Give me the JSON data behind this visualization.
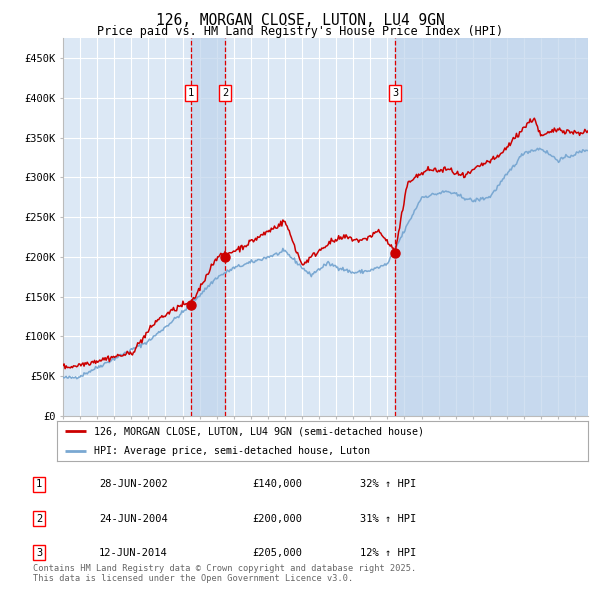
{
  "title": "126, MORGAN CLOSE, LUTON, LU4 9GN",
  "subtitle": "Price paid vs. HM Land Registry's House Price Index (HPI)",
  "legend_line1": "126, MORGAN CLOSE, LUTON, LU4 9GN (semi-detached house)",
  "legend_line2": "HPI: Average price, semi-detached house, Luton",
  "footnote": "Contains HM Land Registry data © Crown copyright and database right 2025.\nThis data is licensed under the Open Government Licence v3.0.",
  "sales": [
    {
      "num": 1,
      "date": "28-JUN-2002",
      "year": 2002.49,
      "price": 140000,
      "pct": "32%",
      "dir": "↑"
    },
    {
      "num": 2,
      "date": "24-JUN-2004",
      "year": 2004.49,
      "price": 200000,
      "pct": "31%",
      "dir": "↑"
    },
    {
      "num": 3,
      "date": "12-JUN-2014",
      "year": 2014.45,
      "price": 205000,
      "pct": "12%",
      "dir": "↑"
    }
  ],
  "sale_prices": [
    140000,
    200000,
    205000
  ],
  "ylim": [
    0,
    475000
  ],
  "yticks": [
    0,
    50000,
    100000,
    150000,
    200000,
    250000,
    300000,
    350000,
    400000,
    450000
  ],
  "ytick_labels": [
    "£0",
    "£50K",
    "£100K",
    "£150K",
    "£200K",
    "£250K",
    "£300K",
    "£350K",
    "£400K",
    "£450K"
  ],
  "xlim": [
    1995.0,
    2025.75
  ],
  "xticks": [
    1995,
    1996,
    1997,
    1998,
    1999,
    2000,
    2001,
    2002,
    2003,
    2004,
    2005,
    2006,
    2007,
    2008,
    2009,
    2010,
    2011,
    2012,
    2013,
    2014,
    2015,
    2016,
    2017,
    2018,
    2019,
    2020,
    2021,
    2022,
    2023,
    2024,
    2025
  ],
  "red_color": "#cc0000",
  "blue_color": "#7aa8d2",
  "bg_plot": "#dce8f5",
  "bg_fig": "#ffffff",
  "grid_color": "#ffffff",
  "vline_shade_color": "#bfd4ec",
  "dashed_vline_color": "#dd0000"
}
